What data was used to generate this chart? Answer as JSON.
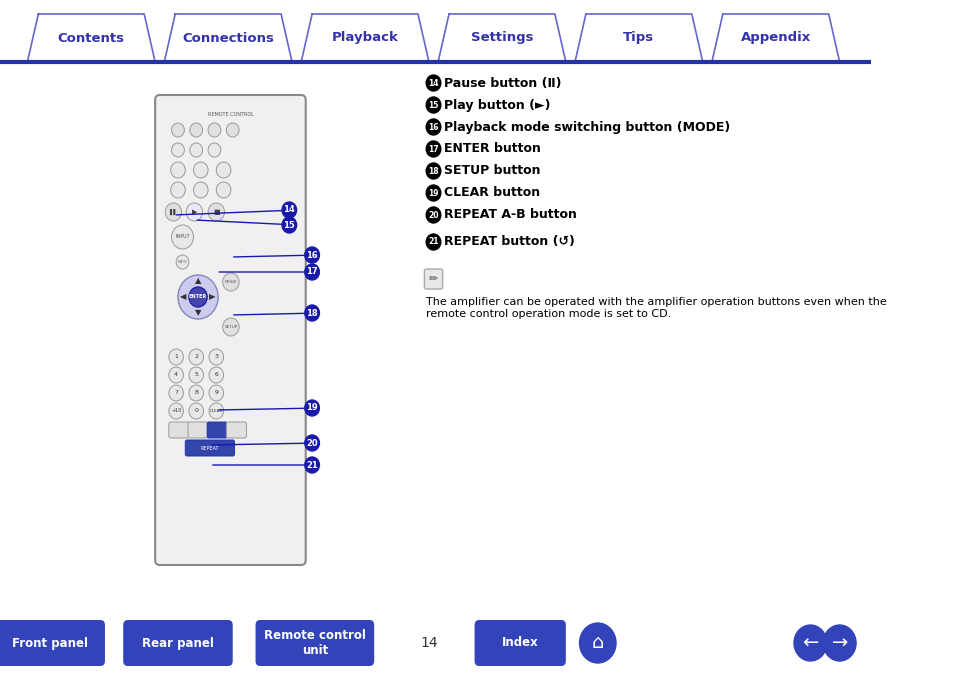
{
  "tab_labels": [
    "Contents",
    "Connections",
    "Playback",
    "Settings",
    "Tips",
    "Appendix"
  ],
  "tab_active": 3,
  "tab_color": "#3333aa",
  "tab_bg": "#ffffff",
  "tab_border": "#6666cc",
  "divider_color": "#2233aa",
  "page_bg": "#ffffff",
  "text_color": "#000000",
  "accent_color": "#1a1aaa",
  "items": [
    {
      "num": "14",
      "label": "Pause button (",
      "symbol": "Ⅱ",
      "suffix": ")"
    },
    {
      "num": "15",
      "label": "Play button (",
      "symbol": "►",
      "suffix": ")"
    },
    {
      "num": "16",
      "label": "Playback mode switching button (MODE)",
      "symbol": "",
      "suffix": ""
    },
    {
      "num": "17",
      "label": "ENTER button",
      "symbol": "",
      "suffix": ""
    },
    {
      "num": "18",
      "label": "SETUP button",
      "symbol": "",
      "suffix": ""
    },
    {
      "num": "19",
      "label": "CLEAR button",
      "symbol": "",
      "suffix": ""
    },
    {
      "num": "20",
      "label": "REPEAT A-B button",
      "symbol": "",
      "suffix": ""
    },
    {
      "num": "21",
      "label": "REPEAT button (↺)",
      "symbol": "",
      "suffix": ""
    }
  ],
  "note_text": "The amplifier can be operated with the amplifier operation buttons even when the\nremote control operation mode is set to CD.",
  "bottom_buttons": [
    "Front panel",
    "Rear panel",
    "Remote control\nunit",
    "Index"
  ],
  "page_num": "14",
  "bottom_btn_color": "#3344bb"
}
